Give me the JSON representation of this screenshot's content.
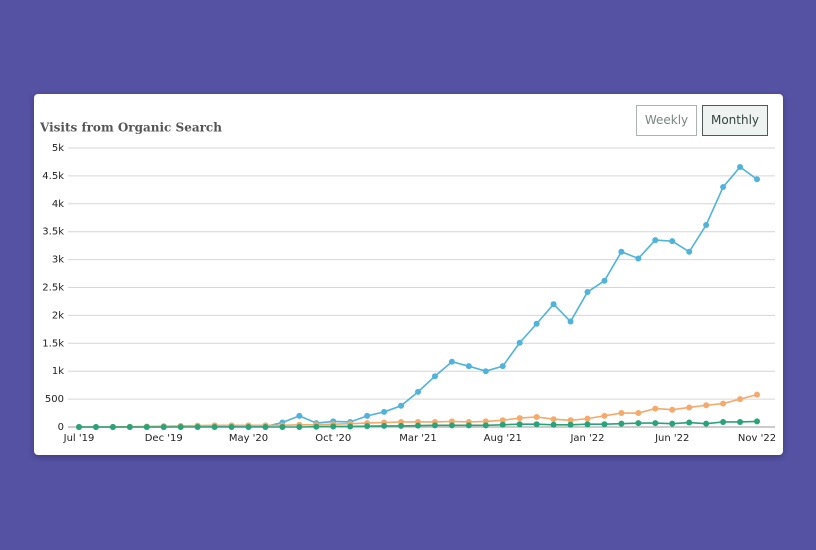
{
  "chart_data": {
    "type": "line",
    "title": "Visits from Organic Search",
    "buttons": [
      "Weekly",
      "Monthly"
    ],
    "categories": [
      "Jul '19",
      null,
      null,
      null,
      null,
      "Dec '19",
      null,
      null,
      null,
      null,
      "May '20",
      null,
      null,
      null,
      null,
      "Oct '20",
      null,
      null,
      null,
      null,
      "Mar '21",
      null,
      null,
      null,
      null,
      "Aug '21",
      null,
      null,
      null,
      null,
      "Jan '22",
      null,
      null,
      null,
      null,
      "Jun '22",
      null,
      null,
      null,
      null,
      "Nov '22"
    ],
    "series": [
      {
        "color": "#4fb3dc",
        "values": [
          0,
          0,
          0,
          0,
          0,
          0,
          5,
          10,
          10,
          10,
          10,
          10,
          80,
          200,
          70,
          100,
          90,
          200,
          270,
          380,
          630,
          910,
          1170,
          1090,
          1000,
          1090,
          1510,
          1850,
          2200,
          1890,
          2420,
          2620,
          3140,
          3020,
          3350,
          3330,
          3140,
          3620,
          4300,
          4660,
          4440
        ]
      },
      {
        "color": "#f5a96b",
        "values": [
          0,
          0,
          0,
          5,
          10,
          15,
          20,
          25,
          30,
          30,
          30,
          30,
          30,
          40,
          40,
          50,
          60,
          70,
          80,
          90,
          90,
          90,
          100,
          90,
          100,
          120,
          160,
          180,
          140,
          120,
          150,
          200,
          250,
          250,
          330,
          310,
          350,
          390,
          420,
          500,
          580
        ]
      },
      {
        "color": "#2aa37a",
        "values": [
          0,
          0,
          0,
          0,
          0,
          0,
          0,
          0,
          0,
          0,
          0,
          0,
          0,
          0,
          5,
          10,
          10,
          15,
          20,
          20,
          25,
          30,
          30,
          30,
          30,
          40,
          50,
          50,
          40,
          40,
          50,
          50,
          60,
          70,
          70,
          60,
          80,
          60,
          90,
          90,
          100
        ]
      }
    ],
    "ylim": [
      0,
      5000
    ],
    "yticks": [
      0,
      500,
      {
        "value": 1000,
        "label": "1k"
      },
      {
        "value": 1500,
        "label": "1.5k"
      },
      {
        "value": 2000,
        "label": "2k"
      },
      {
        "value": 2500,
        "label": "2.5k"
      },
      {
        "value": 3000,
        "label": "3k"
      },
      {
        "value": 3500,
        "label": "3.5k"
      },
      {
        "value": 4000,
        "label": "4k"
      },
      {
        "value": 4500,
        "label": "4.5k"
      },
      {
        "value": 5000,
        "label": "5k"
      }
    ],
    "grid": true
  }
}
